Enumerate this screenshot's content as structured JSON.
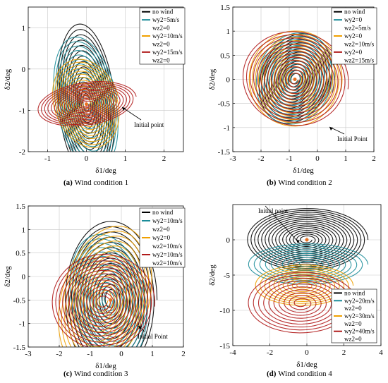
{
  "colors": {
    "no_wind": "#000000",
    "teal": "#1a8c99",
    "orange": "#f0a000",
    "red": "#b01a1a",
    "olive": "#b8c060",
    "center": "#e87020"
  },
  "chart_data": [
    {
      "type": "line",
      "caption_label": "(a)",
      "caption_text": "Wind condition 1",
      "xlabel": "δ1/deg",
      "ylabel": "δ2/deg",
      "xlim": [
        -1.5,
        2.5
      ],
      "ylim": [
        -2,
        1.5
      ],
      "xticks": [
        "-1",
        "0",
        "1",
        "2"
      ],
      "yticks": [
        "1",
        "0",
        "-1",
        "-2"
      ],
      "legend": [
        "no wind",
        "wy2=5m/s",
        "wz2=0",
        "wy2=10m/s",
        "wz2=0",
        "wy2=15m/s",
        "wz2=0"
      ],
      "legend_position": "top-right",
      "annotation": "Initial point",
      "series": [
        {
          "name": "no wind",
          "color": "black",
          "center": [
            0,
            -0.85
          ],
          "rx": 0.75,
          "ry": 2.0,
          "tilt_deg": 10,
          "turns": 14
        },
        {
          "name": "wy2=5m/s wz2=0",
          "color": "teal",
          "center": [
            0,
            -0.85
          ],
          "rx": 0.85,
          "ry": 1.75,
          "tilt_deg": 20,
          "turns": 14
        },
        {
          "name": "wy2=10m/s wz2=0",
          "color": "orange",
          "center": [
            0,
            -0.85
          ],
          "rx": 0.95,
          "ry": 1.25,
          "tilt_deg": 30,
          "turns": 14
        },
        {
          "name": "wy2=15m/s wz2=0",
          "color": "red",
          "center": [
            0,
            -0.85
          ],
          "rx": 1.35,
          "ry": 0.55,
          "tilt_deg": 18,
          "turns": 14
        }
      ]
    },
    {
      "type": "line",
      "caption_label": "(b)",
      "caption_text": "Wind condition 2",
      "xlabel": "δ1/deg",
      "ylabel": "δ2/deg",
      "xlim": [
        -3,
        2
      ],
      "ylim": [
        -1.5,
        1.5
      ],
      "xticks": [
        "-3",
        "-2",
        "-1",
        "0",
        "1",
        "2"
      ],
      "yticks": [
        "1.5",
        "1",
        "0.5",
        "0",
        "-0.5",
        "-1",
        "-1.5"
      ],
      "legend": [
        "no wind",
        "wy2=0",
        "wz2=5m/s",
        "wy2=0",
        "wz2=10m/s",
        "wy2=0",
        "wz2=15m/s"
      ],
      "legend_position": "top-right",
      "annotation": "Initial Point",
      "series": [
        {
          "name": "no wind",
          "color": "black",
          "center": [
            -0.8,
            0
          ],
          "rx": 1.5,
          "ry": 1.2,
          "tilt_deg": -40,
          "turns": 14
        },
        {
          "name": "wy2=0 wz2=5m/s",
          "color": "teal",
          "center": [
            -0.8,
            0
          ],
          "rx": 1.6,
          "ry": 1.15,
          "tilt_deg": -35,
          "turns": 14
        },
        {
          "name": "wy2=0 wz2=10m/s",
          "color": "orange",
          "center": [
            -0.8,
            0
          ],
          "rx": 1.8,
          "ry": 1.1,
          "tilt_deg": -25,
          "turns": 14
        },
        {
          "name": "wy2=0 wz2=15m/s",
          "color": "red",
          "center": [
            -0.8,
            0
          ],
          "rx": 2.0,
          "ry": 1.05,
          "tilt_deg": -20,
          "turns": 14
        }
      ]
    },
    {
      "type": "line",
      "caption_label": "(c)",
      "caption_text": "Wind condition 3",
      "xlabel": "δ1/deg",
      "ylabel": "δ2/deg",
      "xlim": [
        -3,
        2
      ],
      "ylim": [
        -1.5,
        1.5
      ],
      "xticks": [
        "-3",
        "-2",
        "-1",
        "0",
        "1",
        "2"
      ],
      "yticks": [
        "1.5",
        "1",
        "0.5",
        "0",
        "-0.5",
        "-1",
        "-1.5"
      ],
      "legend": [
        "no wind",
        "wy2=10m/s",
        "wz2=0",
        "wy2=0",
        "wz2=10m/s",
        "wy2=10m/s",
        "wz2=10m/s"
      ],
      "legend_position": "top-right",
      "annotation": "Initial Point",
      "series": [
        {
          "name": "no wind",
          "color": "black",
          "center": [
            -0.35,
            -0.5
          ],
          "rx": 1.5,
          "ry": 1.7,
          "tilt_deg": 0,
          "turns": 14
        },
        {
          "name": "wy2=10m/s wz2=0",
          "color": "teal",
          "center": [
            -0.4,
            -0.5
          ],
          "rx": 1.3,
          "ry": 1.5,
          "tilt_deg": 20,
          "turns": 14
        },
        {
          "name": "wy2=0 wz2=10m/s",
          "color": "orange",
          "center": [
            -0.55,
            -0.5
          ],
          "rx": 1.55,
          "ry": 1.75,
          "tilt_deg": -25,
          "turns": 14
        },
        {
          "name": "wy2=10m/s wz2=10m/s",
          "color": "red",
          "center": [
            -0.6,
            -0.55
          ],
          "rx": 1.7,
          "ry": 1.05,
          "tilt_deg": -10,
          "turns": 14
        }
      ]
    },
    {
      "type": "line",
      "caption_label": "(d)",
      "caption_text": "Wind condition 4",
      "xlabel": "δ1/deg",
      "ylabel": "δ2/deg",
      "xlim": [
        -4,
        4
      ],
      "ylim": [
        -15,
        5
      ],
      "xticks": [
        "-4",
        "-2",
        "0",
        "2",
        "4"
      ],
      "yticks": [
        "0",
        "-5",
        "-10",
        "-15"
      ],
      "legend": [
        "no wind",
        "wy2=20m/s",
        "wz2=0",
        "wy2=30m/s",
        "wz2=0",
        "wy2=40m/s",
        "wz2=0"
      ],
      "legend_position": "bottom-right",
      "annotation": "Initial point",
      "series": [
        {
          "name": "no wind",
          "color": "black",
          "center": [
            0,
            0
          ],
          "rx": 3.3,
          "ry": 4.5,
          "tilt_deg": 0,
          "turns": 16
        },
        {
          "name": "wy2=20m/s wz2=0",
          "color": "teal",
          "center": [
            0,
            -3.5
          ],
          "rx": 3.3,
          "ry": 3.0,
          "tilt_deg": 0,
          "turns": 10
        },
        {
          "name": "wy2=30m/s wz2=0",
          "color": "orange",
          "center": [
            -0.2,
            -6.5
          ],
          "rx": 2.7,
          "ry": 3.0,
          "tilt_deg": 0,
          "turns": 10
        },
        {
          "name": "wy2=40m/s wz2=0",
          "color": "red",
          "center": [
            -0.3,
            -9
          ],
          "rx": 3.0,
          "ry": 4.5,
          "tilt_deg": 0,
          "turns": 10
        }
      ]
    }
  ]
}
